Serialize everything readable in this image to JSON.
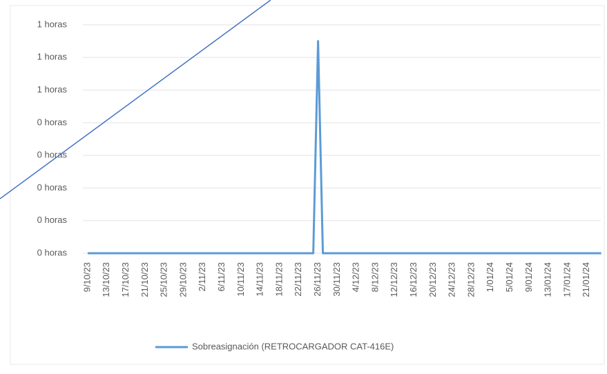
{
  "chart_data": {
    "type": "line",
    "categories": [
      "9/10/23",
      null,
      null,
      null,
      "13/10/23",
      null,
      null,
      null,
      "17/10/23",
      null,
      null,
      null,
      "21/10/23",
      null,
      null,
      null,
      "25/10/23",
      null,
      null,
      null,
      "29/10/23",
      null,
      null,
      null,
      "2/11/23",
      null,
      null,
      null,
      "6/11/23",
      null,
      null,
      null,
      "10/11/23",
      null,
      null,
      null,
      "14/11/23",
      null,
      null,
      null,
      "18/11/23",
      null,
      null,
      null,
      "22/11/23",
      null,
      null,
      null,
      "26/11/23",
      null,
      null,
      null,
      "30/11/23",
      null,
      null,
      null,
      "4/12/23",
      null,
      null,
      null,
      "8/12/23",
      null,
      null,
      null,
      "12/12/23",
      null,
      null,
      null,
      "16/12/23",
      null,
      null,
      null,
      "20/12/23",
      null,
      null,
      null,
      "24/12/23",
      null,
      null,
      null,
      "28/12/23",
      null,
      null,
      null,
      "1/01/24",
      null,
      null,
      null,
      "5/01/24",
      null,
      null,
      null,
      "9/01/24",
      null,
      null,
      null,
      "13/01/24",
      null,
      null,
      null,
      "17/01/24",
      null,
      null,
      null,
      "21/01/24",
      null,
      null,
      null
    ],
    "series": [
      {
        "name": "Sobreasignación (RETROCARGADOR CAT-416E)",
        "color": "#5b9bd5",
        "values": [
          0,
          0,
          0,
          0,
          0,
          0,
          0,
          0,
          0,
          0,
          0,
          0,
          0,
          0,
          0,
          0,
          0,
          0,
          0,
          0,
          0,
          0,
          0,
          0,
          0,
          0,
          0,
          0,
          0,
          0,
          0,
          0,
          0,
          0,
          0,
          0,
          0,
          0,
          0,
          0,
          0,
          0,
          0,
          0,
          0,
          0,
          0,
          0,
          1.3,
          0,
          0,
          0,
          0,
          0,
          0,
          0,
          0,
          0,
          0,
          0,
          0,
          0,
          0,
          0,
          0,
          0,
          0,
          0,
          0,
          0,
          0,
          0,
          0,
          0,
          0,
          0,
          0,
          0,
          0,
          0,
          0,
          0,
          0,
          0,
          0,
          0,
          0,
          0,
          0,
          0,
          0,
          0,
          0,
          0,
          0,
          0,
          0,
          0,
          0,
          0,
          0,
          0,
          0,
          0,
          0,
          0,
          0,
          0
        ]
      }
    ],
    "ylim": [
      0,
      1.4
    ],
    "yticks": [
      {
        "value": 0,
        "label": "0 horas"
      },
      {
        "value": 0.2,
        "label": "0 horas"
      },
      {
        "value": 0.4,
        "label": "0 horas"
      },
      {
        "value": 0.6,
        "label": "0 horas"
      },
      {
        "value": 0.8,
        "label": "0 horas"
      },
      {
        "value": 1.0,
        "label": "1 horas"
      },
      {
        "value": 1.2,
        "label": "1 horas"
      },
      {
        "value": 1.4,
        "label": "1 horas"
      }
    ],
    "grid": true,
    "legend": "bottom"
  }
}
